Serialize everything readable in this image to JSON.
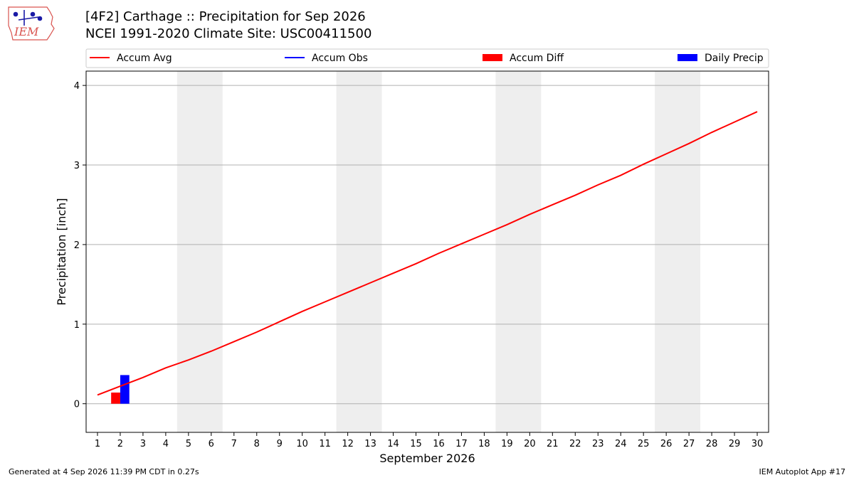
{
  "header": {
    "title_line1": "[4F2] Carthage :: Precipitation for Sep 2026",
    "title_line2": "NCEI 1991-2020 Climate Site: USC00411500",
    "logo_text": "IEM"
  },
  "footer": {
    "generated": "Generated at 4 Sep 2026 11:39 PM CDT in 0.27s",
    "app": "IEM Autoplot App #17"
  },
  "colors": {
    "accum_avg": "#ff0000",
    "accum_obs": "#0000ff",
    "accum_diff": "#ff0000",
    "daily_precip": "#0000ff",
    "weekend_band": "#eeeeee",
    "grid": "#b0b0b0"
  },
  "chart_data": {
    "type": "line",
    "xlabel": "September 2026",
    "ylabel": "Precipitation [inch]",
    "xlim": [
      0.5,
      30.5
    ],
    "ylim": [
      -0.36,
      4.18
    ],
    "x_ticks": [
      1,
      2,
      3,
      4,
      5,
      6,
      7,
      8,
      9,
      10,
      11,
      12,
      13,
      14,
      15,
      16,
      17,
      18,
      19,
      20,
      21,
      22,
      23,
      24,
      25,
      26,
      27,
      28,
      29,
      30
    ],
    "y_ticks": [
      0,
      1,
      2,
      3,
      4
    ],
    "grid": "horizontal",
    "legend_position": "top",
    "legend": [
      "Accum Avg",
      "Accum Obs",
      "Accum Diff",
      "Daily Precip"
    ],
    "weekend_bands": [
      [
        4.5,
        6.5
      ],
      [
        11.5,
        13.5
      ],
      [
        18.5,
        20.5
      ],
      [
        25.5,
        27.5
      ]
    ],
    "series": [
      {
        "name": "Accum Avg",
        "kind": "line",
        "x": [
          1,
          2,
          3,
          4,
          5,
          6,
          7,
          8,
          9,
          10,
          11,
          12,
          13,
          14,
          15,
          16,
          17,
          18,
          19,
          20,
          21,
          22,
          23,
          24,
          25,
          26,
          27,
          28,
          29,
          30
        ],
        "values": [
          0.11,
          0.22,
          0.33,
          0.45,
          0.55,
          0.66,
          0.78,
          0.9,
          1.03,
          1.16,
          1.28,
          1.4,
          1.52,
          1.64,
          1.76,
          1.89,
          2.01,
          2.13,
          2.25,
          2.38,
          2.5,
          2.62,
          2.75,
          2.87,
          3.01,
          3.14,
          3.27,
          3.41,
          3.54,
          3.67
        ]
      },
      {
        "name": "Accum Obs",
        "kind": "line",
        "x": [],
        "values": []
      },
      {
        "name": "Accum Diff",
        "kind": "bar",
        "x": [
          2
        ],
        "values": [
          0.14
        ]
      },
      {
        "name": "Daily Precip",
        "kind": "bar",
        "x": [
          2
        ],
        "values": [
          0.36
        ]
      }
    ]
  }
}
